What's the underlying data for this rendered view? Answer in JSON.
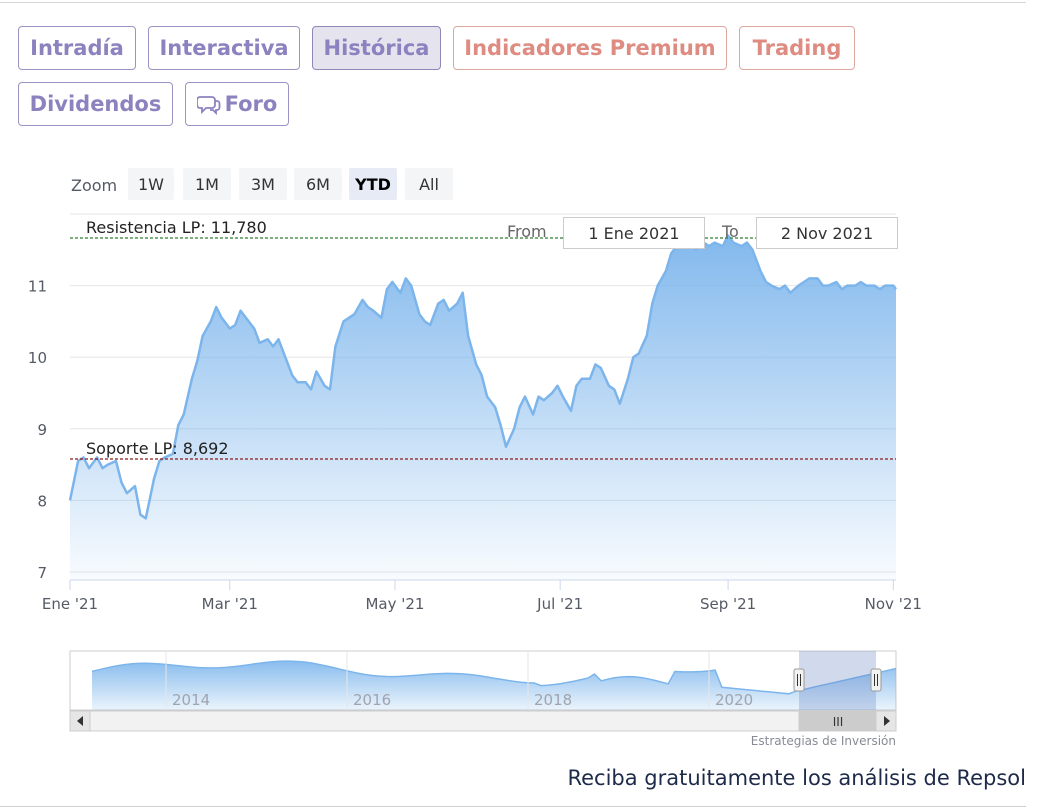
{
  "tabs": [
    {
      "label": "Intradía",
      "kind": "normal"
    },
    {
      "label": "Interactiva",
      "kind": "normal"
    },
    {
      "label": "Histórica",
      "kind": "active"
    },
    {
      "label": "Indicadores Premium",
      "kind": "premium"
    },
    {
      "label": "Trading",
      "kind": "premium"
    },
    {
      "label": "Dividendos",
      "kind": "normal"
    },
    {
      "label": "Foro",
      "kind": "normal",
      "icon": "chat-bubbles-icon"
    }
  ],
  "zoom": {
    "label": "Zoom",
    "buttons": [
      "1W",
      "1M",
      "3M",
      "6M",
      "YTD",
      "All"
    ],
    "active": "YTD"
  },
  "range": {
    "from_label": "From",
    "from_value": "1 Ene 2021",
    "to_label": "To",
    "to_value": "2 Nov 2021"
  },
  "chart_data": {
    "type": "area",
    "title": "",
    "xlabel": "",
    "ylabel": "",
    "ylim": [
      7,
      12
    ],
    "yticks": [
      7,
      8,
      9,
      10,
      11
    ],
    "xticks": [
      {
        "label": "Ene '21",
        "date": "2021-01-01"
      },
      {
        "label": "Mar '21",
        "date": "2021-03-01"
      },
      {
        "label": "May '21",
        "date": "2021-05-01"
      },
      {
        "label": "Jul '21",
        "date": "2021-07-01"
      },
      {
        "label": "Sep '21",
        "date": "2021-09-01"
      },
      {
        "label": "Nov '21",
        "date": "2021-11-01"
      }
    ],
    "xrange": [
      "2021-01-01",
      "2021-11-02"
    ],
    "grid": true,
    "series_color": "#7cb5ec",
    "x": [
      "2021-01-01",
      "2021-01-04",
      "2021-01-06",
      "2021-01-08",
      "2021-01-11",
      "2021-01-13",
      "2021-01-15",
      "2021-01-18",
      "2021-01-20",
      "2021-01-22",
      "2021-01-25",
      "2021-01-27",
      "2021-01-29",
      "2021-02-01",
      "2021-02-03",
      "2021-02-05",
      "2021-02-08",
      "2021-02-10",
      "2021-02-12",
      "2021-02-15",
      "2021-02-17",
      "2021-02-19",
      "2021-02-22",
      "2021-02-24",
      "2021-02-26",
      "2021-03-01",
      "2021-03-03",
      "2021-03-05",
      "2021-03-08",
      "2021-03-10",
      "2021-03-12",
      "2021-03-15",
      "2021-03-17",
      "2021-03-19",
      "2021-03-22",
      "2021-03-24",
      "2021-03-26",
      "2021-03-29",
      "2021-03-31",
      "2021-04-02",
      "2021-04-05",
      "2021-04-07",
      "2021-04-09",
      "2021-04-12",
      "2021-04-14",
      "2021-04-16",
      "2021-04-19",
      "2021-04-21",
      "2021-04-23",
      "2021-04-26",
      "2021-04-28",
      "2021-04-30",
      "2021-05-03",
      "2021-05-05",
      "2021-05-07",
      "2021-05-10",
      "2021-05-12",
      "2021-05-14",
      "2021-05-17",
      "2021-05-19",
      "2021-05-21",
      "2021-05-24",
      "2021-05-26",
      "2021-05-28",
      "2021-05-31",
      "2021-06-02",
      "2021-06-04",
      "2021-06-07",
      "2021-06-09",
      "2021-06-11",
      "2021-06-14",
      "2021-06-16",
      "2021-06-18",
      "2021-06-21",
      "2021-06-23",
      "2021-06-25",
      "2021-06-28",
      "2021-06-30",
      "2021-07-02",
      "2021-07-05",
      "2021-07-07",
      "2021-07-09",
      "2021-07-12",
      "2021-07-14",
      "2021-07-16",
      "2021-07-19",
      "2021-07-21",
      "2021-07-23",
      "2021-07-26",
      "2021-07-28",
      "2021-07-30",
      "2021-08-02",
      "2021-08-04",
      "2021-08-06",
      "2021-08-09",
      "2021-08-11",
      "2021-08-13",
      "2021-08-16",
      "2021-08-18",
      "2021-08-20",
      "2021-08-23",
      "2021-08-25",
      "2021-08-27",
      "2021-08-30",
      "2021-09-01",
      "2021-09-03",
      "2021-09-06",
      "2021-09-08",
      "2021-09-10",
      "2021-09-13",
      "2021-09-15",
      "2021-09-17",
      "2021-09-20",
      "2021-09-22",
      "2021-09-24",
      "2021-09-27",
      "2021-09-29",
      "2021-10-01",
      "2021-10-04",
      "2021-10-06",
      "2021-10-08",
      "2021-10-11",
      "2021-10-13",
      "2021-10-15",
      "2021-10-18",
      "2021-10-20",
      "2021-10-22",
      "2021-10-25",
      "2021-10-27",
      "2021-10-29",
      "2021-11-01",
      "2021-11-02"
    ],
    "y": [
      8.0,
      8.55,
      8.6,
      8.45,
      8.6,
      8.45,
      8.5,
      8.55,
      8.25,
      8.1,
      8.2,
      7.8,
      7.75,
      8.3,
      8.55,
      8.6,
      8.65,
      9.05,
      9.2,
      9.7,
      9.95,
      10.3,
      10.5,
      10.7,
      10.55,
      10.4,
      10.45,
      10.65,
      10.5,
      10.4,
      10.2,
      10.25,
      10.15,
      10.25,
      9.95,
      9.75,
      9.65,
      9.65,
      9.55,
      9.8,
      9.6,
      9.55,
      10.15,
      10.5,
      10.55,
      10.6,
      10.8,
      10.7,
      10.65,
      10.55,
      10.95,
      11.05,
      10.9,
      11.1,
      11.0,
      10.6,
      10.5,
      10.45,
      10.75,
      10.8,
      10.65,
      10.75,
      10.9,
      10.3,
      9.9,
      9.75,
      9.45,
      9.3,
      9.05,
      8.75,
      9.0,
      9.3,
      9.45,
      9.2,
      9.45,
      9.4,
      9.5,
      9.6,
      9.45,
      9.25,
      9.6,
      9.7,
      9.7,
      9.9,
      9.85,
      9.6,
      9.55,
      9.35,
      9.7,
      10.0,
      10.05,
      10.3,
      10.75,
      11.0,
      11.2,
      11.45,
      11.55,
      11.65,
      11.6,
      11.5,
      11.6,
      11.55,
      11.6,
      11.55,
      11.7,
      11.6,
      11.55,
      11.6,
      11.5,
      11.2,
      11.05,
      11.0,
      10.95,
      11.0,
      10.9,
      11.0,
      11.05,
      11.1,
      11.1,
      11.0,
      11.0,
      11.05,
      10.95,
      11.0,
      11.0,
      11.05,
      11.0,
      11.0,
      10.95,
      11.0,
      11.0,
      10.95
    ],
    "annotations": [
      {
        "label": "Resistencia LP: 11,780",
        "value": 11.78,
        "color": "#2e7d32"
      },
      {
        "label": "Soporte LP: 8,692",
        "value": 8.692,
        "color": "#8b1a1a"
      }
    ],
    "navigator": {
      "xticks": [
        "2014",
        "2016",
        "2018",
        "2020"
      ],
      "scrollbar_grip": "III"
    }
  },
  "credits": "Estrategias de Inversión",
  "promo": "Reciba gratuitamente los análisis de Repsol"
}
